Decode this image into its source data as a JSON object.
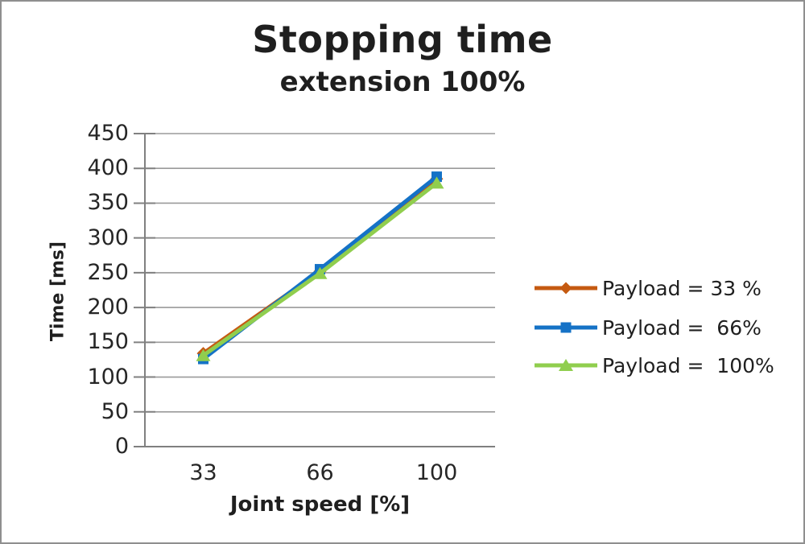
{
  "window": {
    "background": "#ffffff",
    "border_color": "#8f8f8f"
  },
  "chart_data": {
    "type": "line",
    "title": "Stopping time",
    "subtitle": "extension 100%",
    "xlabel": "Joint speed [%]",
    "ylabel": "Time [ms]",
    "categories": [
      "33",
      "66",
      "100"
    ],
    "yticks": [
      450,
      400,
      350,
      300,
      250,
      200,
      150,
      100,
      50,
      0
    ],
    "ylim": [
      0,
      450
    ],
    "grid": true,
    "legend_position": "right-middle",
    "axis_color": "#808080",
    "grid_color": "#9a9a9a",
    "text_color": "#1f1f1f",
    "series": [
      {
        "name": "Payload = 33 %",
        "marker": "diamond",
        "color": "#c55a11",
        "values": [
          134,
          252,
          385
        ]
      },
      {
        "name": "Payload =  66%",
        "marker": "square",
        "color": "#1572c6",
        "values": [
          126,
          255,
          388
        ]
      },
      {
        "name": "Payload =  100%",
        "marker": "triangle",
        "color": "#90ce4e",
        "values": [
          131,
          249,
          379
        ]
      }
    ]
  }
}
